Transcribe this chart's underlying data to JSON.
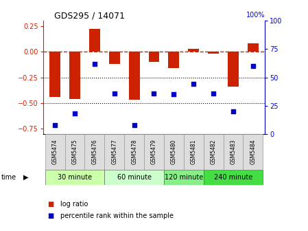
{
  "title": "GDS295 / 14071",
  "samples": [
    "GSM5474",
    "GSM5475",
    "GSM5476",
    "GSM5477",
    "GSM5478",
    "GSM5479",
    "GSM5480",
    "GSM5481",
    "GSM5482",
    "GSM5483",
    "GSM5484"
  ],
  "log_ratio": [
    -0.44,
    -0.46,
    0.22,
    -0.12,
    -0.47,
    -0.1,
    -0.16,
    0.03,
    -0.02,
    -0.34,
    0.08
  ],
  "percentile": [
    8,
    18,
    62,
    36,
    8,
    36,
    35,
    44,
    36,
    20,
    60
  ],
  "bar_color": "#cc2200",
  "dot_color": "#0000cc",
  "ref_line_color": "#cc2200",
  "ylim_left": [
    -0.8,
    0.3
  ],
  "ylim_right": [
    0,
    100
  ],
  "yticks_left": [
    -0.75,
    -0.5,
    -0.25,
    0,
    0.25
  ],
  "yticks_right": [
    0,
    25,
    50,
    75,
    100
  ],
  "hlines": [
    -0.5,
    -0.25
  ],
  "time_groups": [
    {
      "label": "30 minute",
      "start": 0,
      "end": 3,
      "color": "#ccffaa"
    },
    {
      "label": "60 minute",
      "start": 3,
      "end": 6,
      "color": "#ccffcc"
    },
    {
      "label": "120 minute",
      "start": 6,
      "end": 8,
      "color": "#88ee88"
    },
    {
      "label": "240 minute",
      "start": 8,
      "end": 11,
      "color": "#44dd44"
    }
  ],
  "legend_log_ratio": "log ratio",
  "legend_percentile": "percentile rank within the sample",
  "xlabel_time": "time",
  "bg_color": "#ffffff"
}
